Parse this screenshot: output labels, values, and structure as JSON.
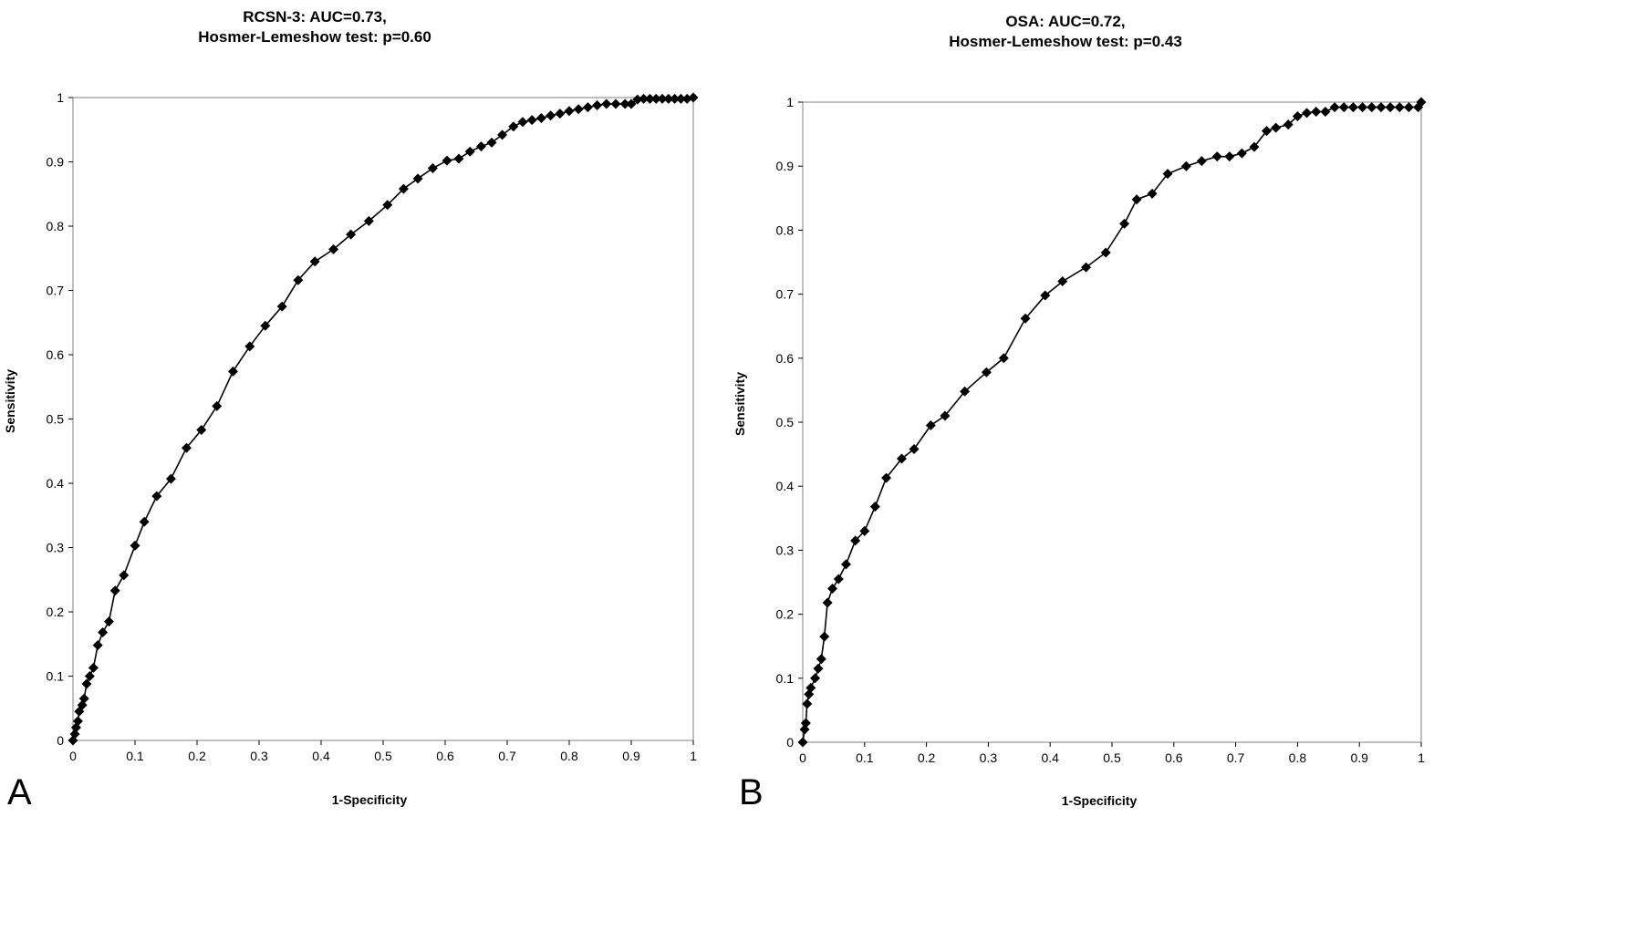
{
  "chart_data": [
    {
      "type": "line",
      "panel_label": "A",
      "title_line1": "RCSN-3: AUC=0.73,",
      "title_line2": "Hosmer-Lemeshow test: p=0.60",
      "xlabel": "1-Specificity",
      "ylabel": "Sensitivity",
      "xlim": [
        0,
        1
      ],
      "ylim": [
        0,
        1
      ],
      "x_ticks": [
        "0",
        "0.1",
        "0.2",
        "0.3",
        "0.4",
        "0.5",
        "0.6",
        "0.7",
        "0.8",
        "0.9",
        "1"
      ],
      "y_ticks": [
        "0",
        "0.1",
        "0.2",
        "0.3",
        "0.4",
        "0.5",
        "0.6",
        "0.7",
        "0.8",
        "0.9",
        "1"
      ],
      "grid": false,
      "marker": "diamond",
      "series": [
        {
          "points": [
            [
              0,
              0
            ],
            [
              0.003,
              0.01
            ],
            [
              0.005,
              0.02
            ],
            [
              0.008,
              0.03
            ],
            [
              0.01,
              0.045
            ],
            [
              0.015,
              0.055
            ],
            [
              0.018,
              0.065
            ],
            [
              0.022,
              0.088
            ],
            [
              0.027,
              0.1
            ],
            [
              0.033,
              0.113
            ],
            [
              0.04,
              0.148
            ],
            [
              0.048,
              0.168
            ],
            [
              0.058,
              0.185
            ],
            [
              0.068,
              0.233
            ],
            [
              0.082,
              0.257
            ],
            [
              0.1,
              0.303
            ],
            [
              0.115,
              0.34
            ],
            [
              0.135,
              0.38
            ],
            [
              0.158,
              0.407
            ],
            [
              0.183,
              0.455
            ],
            [
              0.207,
              0.483
            ],
            [
              0.232,
              0.52
            ],
            [
              0.258,
              0.574
            ],
            [
              0.285,
              0.613
            ],
            [
              0.31,
              0.645
            ],
            [
              0.337,
              0.675
            ],
            [
              0.363,
              0.716
            ],
            [
              0.39,
              0.745
            ],
            [
              0.42,
              0.764
            ],
            [
              0.448,
              0.787
            ],
            [
              0.477,
              0.808
            ],
            [
              0.507,
              0.833
            ],
            [
              0.533,
              0.858
            ],
            [
              0.556,
              0.874
            ],
            [
              0.58,
              0.89
            ],
            [
              0.603,
              0.902
            ],
            [
              0.622,
              0.905
            ],
            [
              0.64,
              0.916
            ],
            [
              0.658,
              0.924
            ],
            [
              0.675,
              0.93
            ],
            [
              0.692,
              0.942
            ],
            [
              0.71,
              0.955
            ],
            [
              0.725,
              0.962
            ],
            [
              0.74,
              0.965
            ],
            [
              0.755,
              0.968
            ],
            [
              0.77,
              0.972
            ],
            [
              0.785,
              0.975
            ],
            [
              0.8,
              0.979
            ],
            [
              0.815,
              0.982
            ],
            [
              0.83,
              0.985
            ],
            [
              0.845,
              0.988
            ],
            [
              0.86,
              0.99
            ],
            [
              0.875,
              0.99
            ],
            [
              0.89,
              0.99
            ],
            [
              0.9,
              0.99
            ],
            [
              0.91,
              0.997
            ],
            [
              0.92,
              0.998
            ],
            [
              0.93,
              0.998
            ],
            [
              0.94,
              0.998
            ],
            [
              0.95,
              0.998
            ],
            [
              0.96,
              0.998
            ],
            [
              0.97,
              0.998
            ],
            [
              0.98,
              0.998
            ],
            [
              0.99,
              0.998
            ],
            [
              1,
              1
            ]
          ]
        }
      ]
    },
    {
      "type": "line",
      "panel_label": "B",
      "title_line1": "OSA: AUC=0.72,",
      "title_line2": "Hosmer-Lemeshow test: p=0.43",
      "xlabel": "1-Specificity",
      "ylabel": "Sensitivity",
      "xlim": [
        0,
        1
      ],
      "ylim": [
        0,
        1
      ],
      "x_ticks": [
        "0",
        "0.1",
        "0.2",
        "0.3",
        "0.4",
        "0.5",
        "0.6",
        "0.7",
        "0.8",
        "0.9",
        "1"
      ],
      "y_ticks": [
        "0",
        "0.1",
        "0.2",
        "0.3",
        "0.4",
        "0.5",
        "0.6",
        "0.7",
        "0.8",
        "0.9",
        "1"
      ],
      "grid": false,
      "marker": "diamond",
      "series": [
        {
          "points": [
            [
              0,
              0
            ],
            [
              0.003,
              0.02
            ],
            [
              0.005,
              0.03
            ],
            [
              0.007,
              0.06
            ],
            [
              0.01,
              0.075
            ],
            [
              0.013,
              0.085
            ],
            [
              0.02,
              0.1
            ],
            [
              0.025,
              0.115
            ],
            [
              0.03,
              0.13
            ],
            [
              0.035,
              0.165
            ],
            [
              0.04,
              0.218
            ],
            [
              0.048,
              0.24
            ],
            [
              0.058,
              0.255
            ],
            [
              0.07,
              0.278
            ],
            [
              0.085,
              0.315
            ],
            [
              0.1,
              0.33
            ],
            [
              0.117,
              0.368
            ],
            [
              0.135,
              0.413
            ],
            [
              0.16,
              0.443
            ],
            [
              0.18,
              0.458
            ],
            [
              0.207,
              0.495
            ],
            [
              0.23,
              0.51
            ],
            [
              0.262,
              0.548
            ],
            [
              0.297,
              0.578
            ],
            [
              0.325,
              0.6
            ],
            [
              0.36,
              0.662
            ],
            [
              0.392,
              0.698
            ],
            [
              0.42,
              0.72
            ],
            [
              0.458,
              0.742
            ],
            [
              0.49,
              0.765
            ],
            [
              0.52,
              0.81
            ],
            [
              0.54,
              0.848
            ],
            [
              0.565,
              0.857
            ],
            [
              0.59,
              0.888
            ],
            [
              0.62,
              0.9
            ],
            [
              0.645,
              0.908
            ],
            [
              0.67,
              0.915
            ],
            [
              0.69,
              0.915
            ],
            [
              0.71,
              0.92
            ],
            [
              0.73,
              0.93
            ],
            [
              0.75,
              0.955
            ],
            [
              0.765,
              0.96
            ],
            [
              0.785,
              0.965
            ],
            [
              0.8,
              0.978
            ],
            [
              0.815,
              0.983
            ],
            [
              0.83,
              0.985
            ],
            [
              0.845,
              0.985
            ],
            [
              0.86,
              0.992
            ],
            [
              0.875,
              0.992
            ],
            [
              0.89,
              0.992
            ],
            [
              0.905,
              0.992
            ],
            [
              0.92,
              0.992
            ],
            [
              0.935,
              0.992
            ],
            [
              0.95,
              0.992
            ],
            [
              0.965,
              0.992
            ],
            [
              0.98,
              0.992
            ],
            [
              0.995,
              0.992
            ],
            [
              1,
              1
            ]
          ]
        }
      ]
    }
  ]
}
